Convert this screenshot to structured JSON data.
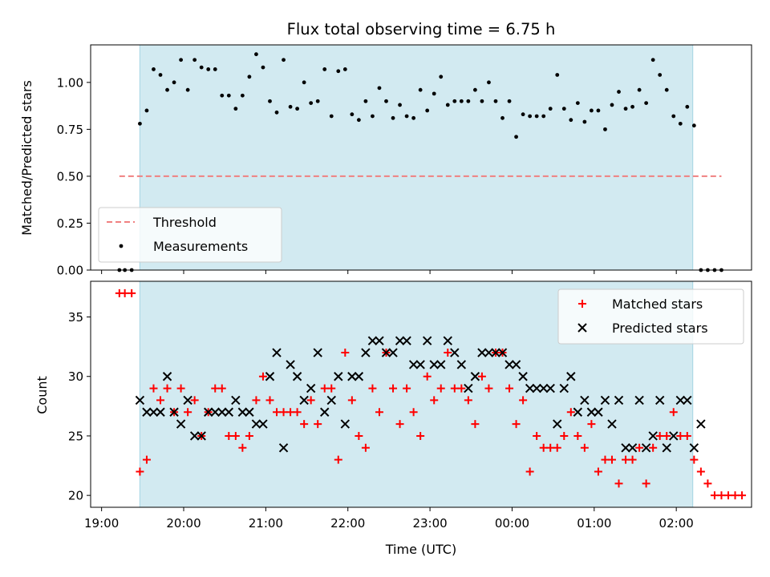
{
  "figure": {
    "title": "Flux total observing time = 6.75 h",
    "xlabel": "Time (UTC)",
    "x_tick_labels": [
      "19:00",
      "20:00",
      "21:00",
      "22:00",
      "23:00",
      "00:00",
      "01:00",
      "02:00"
    ],
    "shaded_window": [
      "19:28",
      "02:12"
    ],
    "shade_color": "#add8e6",
    "marker_color_measurement": "#000000",
    "threshold_color": "#f08080",
    "matched_color": "#ff0000",
    "predicted_color": "#000000"
  },
  "chart_data": [
    {
      "type": "scatter",
      "ylabel": "Matched/Predicted stars",
      "ylim": [
        0,
        1.2
      ],
      "y_tick_labels": [
        "0.00",
        "0.25",
        "0.50",
        "0.75",
        "1.00"
      ],
      "legend_placement": "lower-left",
      "threshold": {
        "name": "Threshold",
        "value": 0.5,
        "x_start": "19:13",
        "x_end": "02:33"
      },
      "series": [
        {
          "name": "Measurements",
          "points": [
            [
              "19:13",
              0
            ],
            [
              "19:17",
              0
            ],
            [
              "19:22",
              0
            ],
            [
              "19:28",
              0.78
            ],
            [
              "19:33",
              0.85
            ],
            [
              "19:38",
              1.07
            ],
            [
              "19:43",
              1.04
            ],
            [
              "19:48",
              0.96
            ],
            [
              "19:53",
              1.0
            ],
            [
              "19:58",
              1.12
            ],
            [
              "20:03",
              0.96
            ],
            [
              "20:08",
              1.12
            ],
            [
              "20:13",
              1.08
            ],
            [
              "20:18",
              1.07
            ],
            [
              "20:23",
              1.07
            ],
            [
              "20:28",
              0.93
            ],
            [
              "20:33",
              0.93
            ],
            [
              "20:38",
              0.86
            ],
            [
              "20:43",
              0.93
            ],
            [
              "20:48",
              1.03
            ],
            [
              "20:53",
              1.15
            ],
            [
              "20:58",
              1.08
            ],
            [
              "21:03",
              0.9
            ],
            [
              "21:08",
              0.84
            ],
            [
              "21:13",
              1.12
            ],
            [
              "21:18",
              0.87
            ],
            [
              "21:23",
              0.86
            ],
            [
              "21:28",
              1.0
            ],
            [
              "21:33",
              0.89
            ],
            [
              "21:38",
              0.9
            ],
            [
              "21:43",
              1.07
            ],
            [
              "21:48",
              0.82
            ],
            [
              "21:53",
              1.06
            ],
            [
              "21:58",
              1.07
            ],
            [
              "22:03",
              0.83
            ],
            [
              "22:08",
              0.8
            ],
            [
              "22:13",
              0.9
            ],
            [
              "22:18",
              0.82
            ],
            [
              "22:23",
              0.97
            ],
            [
              "22:28",
              0.9
            ],
            [
              "22:33",
              0.81
            ],
            [
              "22:38",
              0.88
            ],
            [
              "22:43",
              0.82
            ],
            [
              "22:48",
              0.81
            ],
            [
              "22:53",
              0.96
            ],
            [
              "22:58",
              0.85
            ],
            [
              "23:03",
              0.94
            ],
            [
              "23:08",
              1.03
            ],
            [
              "23:13",
              0.88
            ],
            [
              "23:18",
              0.9
            ],
            [
              "23:23",
              0.9
            ],
            [
              "23:28",
              0.9
            ],
            [
              "23:33",
              0.96
            ],
            [
              "23:38",
              0.9
            ],
            [
              "23:43",
              1.0
            ],
            [
              "23:48",
              0.9
            ],
            [
              "23:53",
              0.81
            ],
            [
              "23:58",
              0.9
            ],
            [
              "00:03",
              0.71
            ],
            [
              "00:08",
              0.83
            ],
            [
              "00:13",
              0.82
            ],
            [
              "00:18",
              0.82
            ],
            [
              "00:23",
              0.82
            ],
            [
              "00:28",
              0.86
            ],
            [
              "00:33",
              1.04
            ],
            [
              "00:38",
              0.86
            ],
            [
              "00:43",
              0.8
            ],
            [
              "00:48",
              0.89
            ],
            [
              "00:53",
              0.79
            ],
            [
              "00:58",
              0.85
            ],
            [
              "01:03",
              0.85
            ],
            [
              "01:08",
              0.75
            ],
            [
              "01:13",
              0.88
            ],
            [
              "01:18",
              0.95
            ],
            [
              "01:23",
              0.86
            ],
            [
              "01:28",
              0.87
            ],
            [
              "01:33",
              0.96
            ],
            [
              "01:38",
              0.89
            ],
            [
              "01:43",
              1.12
            ],
            [
              "01:48",
              1.04
            ],
            [
              "01:53",
              0.96
            ],
            [
              "01:58",
              0.82
            ],
            [
              "02:03",
              0.78
            ],
            [
              "02:08",
              0.87
            ],
            [
              "02:13",
              0.77
            ],
            [
              "02:18",
              0
            ],
            [
              "02:23",
              0
            ],
            [
              "02:28",
              0
            ],
            [
              "02:33",
              0
            ]
          ]
        }
      ]
    },
    {
      "type": "scatter",
      "ylabel": "Count",
      "ylim": [
        19,
        38
      ],
      "y_tick_labels": [
        "20",
        "25",
        "30",
        "35"
      ],
      "legend_placement": "upper-right",
      "series": [
        {
          "name": "Matched stars",
          "marker": "plus",
          "points": [
            [
              "19:13",
              37
            ],
            [
              "19:17",
              37
            ],
            [
              "19:22",
              37
            ],
            [
              "19:28",
              22
            ],
            [
              "19:33",
              23
            ],
            [
              "19:38",
              29
            ],
            [
              "19:43",
              28
            ],
            [
              "19:48",
              29
            ],
            [
              "19:53",
              27
            ],
            [
              "19:58",
              29
            ],
            [
              "20:03",
              27
            ],
            [
              "20:08",
              28
            ],
            [
              "20:13",
              25
            ],
            [
              "20:18",
              27
            ],
            [
              "20:23",
              29
            ],
            [
              "20:28",
              29
            ],
            [
              "20:33",
              25
            ],
            [
              "20:38",
              25
            ],
            [
              "20:43",
              24
            ],
            [
              "20:48",
              25
            ],
            [
              "20:53",
              28
            ],
            [
              "20:58",
              30
            ],
            [
              "21:03",
              28
            ],
            [
              "21:08",
              27
            ],
            [
              "21:13",
              27
            ],
            [
              "21:18",
              27
            ],
            [
              "21:23",
              27
            ],
            [
              "21:28",
              26
            ],
            [
              "21:33",
              28
            ],
            [
              "21:38",
              26
            ],
            [
              "21:43",
              29
            ],
            [
              "21:48",
              29
            ],
            [
              "21:53",
              23
            ],
            [
              "21:58",
              32
            ],
            [
              "22:03",
              28
            ],
            [
              "22:08",
              25
            ],
            [
              "22:13",
              24
            ],
            [
              "22:18",
              29
            ],
            [
              "22:23",
              27
            ],
            [
              "22:28",
              32
            ],
            [
              "22:33",
              29
            ],
            [
              "22:38",
              26
            ],
            [
              "22:43",
              29
            ],
            [
              "22:48",
              27
            ],
            [
              "22:53",
              25
            ],
            [
              "22:58",
              30
            ],
            [
              "23:03",
              28
            ],
            [
              "23:08",
              29
            ],
            [
              "23:13",
              32
            ],
            [
              "23:18",
              29
            ],
            [
              "23:23",
              29
            ],
            [
              "23:28",
              28
            ],
            [
              "23:33",
              26
            ],
            [
              "23:38",
              30
            ],
            [
              "23:43",
              29
            ],
            [
              "23:48",
              32
            ],
            [
              "23:53",
              32
            ],
            [
              "23:58",
              29
            ],
            [
              "00:03",
              26
            ],
            [
              "00:08",
              28
            ],
            [
              "00:13",
              22
            ],
            [
              "00:18",
              25
            ],
            [
              "00:23",
              24
            ],
            [
              "00:28",
              24
            ],
            [
              "00:33",
              24
            ],
            [
              "00:38",
              25
            ],
            [
              "00:43",
              27
            ],
            [
              "00:48",
              25
            ],
            [
              "00:53",
              24
            ],
            [
              "00:58",
              26
            ],
            [
              "01:03",
              22
            ],
            [
              "01:08",
              23
            ],
            [
              "01:13",
              23
            ],
            [
              "01:18",
              21
            ],
            [
              "01:23",
              23
            ],
            [
              "01:28",
              23
            ],
            [
              "01:33",
              24
            ],
            [
              "01:38",
              21
            ],
            [
              "01:43",
              24
            ],
            [
              "01:48",
              25
            ],
            [
              "01:53",
              25
            ],
            [
              "01:58",
              27
            ],
            [
              "02:03",
              25
            ],
            [
              "02:08",
              25
            ],
            [
              "02:13",
              23
            ],
            [
              "02:18",
              22
            ],
            [
              "02:23",
              21
            ],
            [
              "02:28",
              20
            ],
            [
              "02:33",
              20
            ],
            [
              "02:38",
              20
            ],
            [
              "02:43",
              20
            ],
            [
              "02:48",
              20
            ]
          ]
        },
        {
          "name": "Predicted stars",
          "marker": "x",
          "points": [
            [
              "19:28",
              28
            ],
            [
              "19:33",
              27
            ],
            [
              "19:38",
              27
            ],
            [
              "19:43",
              27
            ],
            [
              "19:48",
              30
            ],
            [
              "19:53",
              27
            ],
            [
              "19:58",
              26
            ],
            [
              "20:03",
              28
            ],
            [
              "20:08",
              25
            ],
            [
              "20:13",
              25
            ],
            [
              "20:18",
              27
            ],
            [
              "20:23",
              27
            ],
            [
              "20:28",
              27
            ],
            [
              "20:33",
              27
            ],
            [
              "20:38",
              28
            ],
            [
              "20:43",
              27
            ],
            [
              "20:48",
              27
            ],
            [
              "20:53",
              26
            ],
            [
              "20:58",
              26
            ],
            [
              "21:03",
              30
            ],
            [
              "21:08",
              32
            ],
            [
              "21:13",
              24
            ],
            [
              "21:18",
              31
            ],
            [
              "21:23",
              30
            ],
            [
              "21:28",
              28
            ],
            [
              "21:33",
              29
            ],
            [
              "21:38",
              32
            ],
            [
              "21:43",
              27
            ],
            [
              "21:48",
              28
            ],
            [
              "21:53",
              30
            ],
            [
              "21:58",
              26
            ],
            [
              "22:03",
              30
            ],
            [
              "22:08",
              30
            ],
            [
              "22:13",
              32
            ],
            [
              "22:18",
              33
            ],
            [
              "22:23",
              33
            ],
            [
              "22:28",
              32
            ],
            [
              "22:33",
              32
            ],
            [
              "22:38",
              33
            ],
            [
              "22:43",
              33
            ],
            [
              "22:48",
              31
            ],
            [
              "22:53",
              31
            ],
            [
              "22:58",
              33
            ],
            [
              "23:03",
              31
            ],
            [
              "23:08",
              31
            ],
            [
              "23:13",
              33
            ],
            [
              "23:18",
              32
            ],
            [
              "23:23",
              31
            ],
            [
              "23:28",
              29
            ],
            [
              "23:33",
              30
            ],
            [
              "23:38",
              32
            ],
            [
              "23:43",
              32
            ],
            [
              "23:48",
              32
            ],
            [
              "23:53",
              32
            ],
            [
              "23:58",
              31
            ],
            [
              "00:03",
              31
            ],
            [
              "00:08",
              30
            ],
            [
              "00:13",
              29
            ],
            [
              "00:18",
              29
            ],
            [
              "00:23",
              29
            ],
            [
              "00:28",
              29
            ],
            [
              "00:33",
              26
            ],
            [
              "00:38",
              29
            ],
            [
              "00:43",
              30
            ],
            [
              "00:48",
              27
            ],
            [
              "00:53",
              28
            ],
            [
              "00:58",
              27
            ],
            [
              "01:03",
              27
            ],
            [
              "01:08",
              28
            ],
            [
              "01:13",
              26
            ],
            [
              "01:18",
              28
            ],
            [
              "01:23",
              24
            ],
            [
              "01:28",
              24
            ],
            [
              "01:33",
              28
            ],
            [
              "01:38",
              24
            ],
            [
              "01:43",
              25
            ],
            [
              "01:48",
              28
            ],
            [
              "01:53",
              24
            ],
            [
              "01:58",
              25
            ],
            [
              "02:03",
              28
            ],
            [
              "02:08",
              28
            ],
            [
              "02:13",
              24
            ],
            [
              "02:18",
              26
            ]
          ]
        }
      ]
    }
  ]
}
